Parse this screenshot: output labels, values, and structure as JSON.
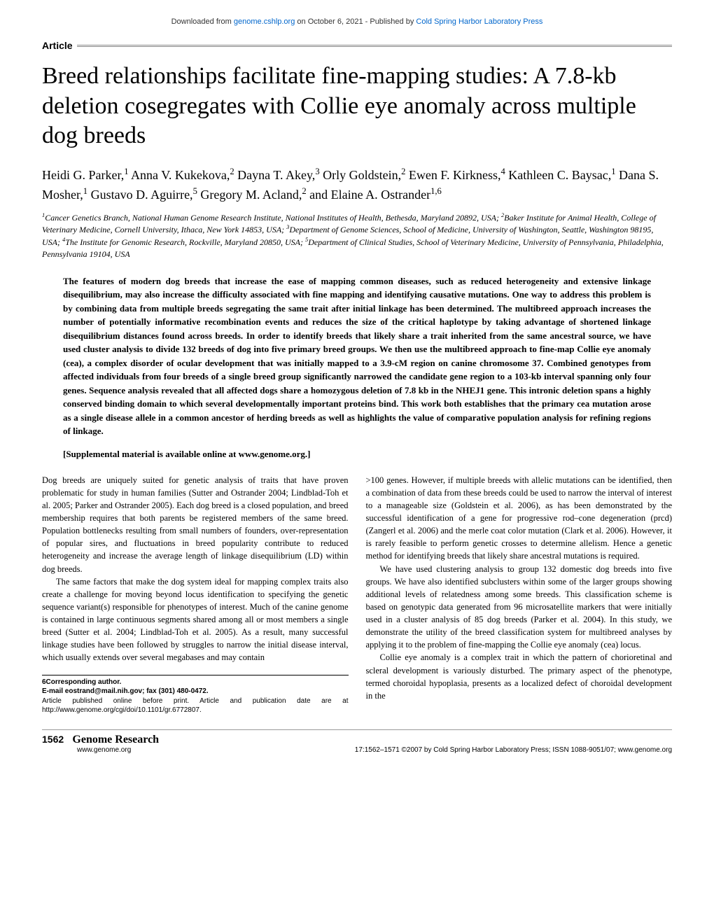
{
  "download_bar": {
    "prefix": "Downloaded from ",
    "link1": "genome.cshlp.org",
    "middle": " on October 6, 2021 - Published by ",
    "link2": "Cold Spring Harbor Laboratory Press"
  },
  "article_label": "Article",
  "title": "Breed relationships facilitate fine-mapping studies: A 7.8-kb deletion cosegregates with Collie eye anomaly across multiple dog breeds",
  "authors_html": "Heidi G. Parker,<sup>1</sup> Anna V. Kukekova,<sup>2</sup> Dayna T. Akey,<sup>3</sup> Orly Goldstein,<sup>2</sup> Ewen F. Kirkness,<sup>4</sup> Kathleen C. Baysac,<sup>1</sup> Dana S. Mosher,<sup>1</sup> Gustavo D. Aguirre,<sup>5</sup> Gregory M. Acland,<sup>2</sup> and Elaine A. Ostrander<sup>1,6</sup>",
  "affiliations_html": "<sup>1</sup>Cancer Genetics Branch, National Human Genome Research Institute, National Institutes of Health, Bethesda, Maryland 20892, USA; <sup>2</sup>Baker Institute for Animal Health, College of Veterinary Medicine, Cornell University, Ithaca, New York 14853, USA; <sup>3</sup>Department of Genome Sciences, School of Medicine, University of Washington, Seattle, Washington 98195, USA; <sup>4</sup>The Institute for Genomic Research, Rockville, Maryland 20850, USA; <sup>5</sup>Department of Clinical Studies, School of Veterinary Medicine, University of Pennsylvania, Philadelphia, Pennsylvania 19104, USA",
  "abstract": "The features of modern dog breeds that increase the ease of mapping common diseases, such as reduced heterogeneity and extensive linkage disequilibrium, may also increase the difficulty associated with fine mapping and identifying causative mutations. One way to address this problem is by combining data from multiple breeds segregating the same trait after initial linkage has been determined. The multibreed approach increases the number of potentially informative recombination events and reduces the size of the critical haplotype by taking advantage of shortened linkage disequilibrium distances found across breeds. In order to identify breeds that likely share a trait inherited from the same ancestral source, we have used cluster analysis to divide 132 breeds of dog into five primary breed groups. We then use the multibreed approach to fine-map Collie eye anomaly (cea), a complex disorder of ocular development that was initially mapped to a 3.9-cM region on canine chromosome 37. Combined genotypes from affected individuals from four breeds of a single breed group significantly narrowed the candidate gene region to a 103-kb interval spanning only four genes. Sequence analysis revealed that all affected dogs share a homozygous deletion of 7.8 kb in the NHEJ1 gene. This intronic deletion spans a highly conserved binding domain to which several developmentally important proteins bind. This work both establishes that the primary cea mutation arose as a single disease allele in a common ancestor of herding breeds as well as highlights the value of comparative population analysis for refining regions of linkage.",
  "supplemental": "[Supplemental material is available online at www.genome.org.]",
  "body": {
    "col1_p1": "Dog breeds are uniquely suited for genetic analysis of traits that have proven problematic for study in human families (Sutter and Ostrander 2004; Lindblad-Toh et al. 2005; Parker and Ostrander 2005). Each dog breed is a closed population, and breed membership requires that both parents be registered members of the same breed. Population bottlenecks resulting from small numbers of founders, over-representation of popular sires, and fluctuations in breed popularity contribute to reduced heterogeneity and increase the average length of linkage disequilibrium (LD) within dog breeds.",
    "col1_p2": "The same factors that make the dog system ideal for mapping complex traits also create a challenge for moving beyond locus identification to specifying the genetic sequence variant(s) responsible for phenotypes of interest. Much of the canine genome is contained in large continuous segments shared among all or most members a single breed (Sutter et al. 2004; Lindblad-Toh et al. 2005). As a result, many successful linkage studies have been followed by struggles to narrow the initial disease interval, which usually extends over several megabases and may contain",
    "col2_p1": ">100 genes. However, if multiple breeds with allelic mutations can be identified, then a combination of data from these breeds could be used to narrow the interval of interest to a manageable size (Goldstein et al. 2006), as has been demonstrated by the successful identification of a gene for progressive rod–cone degeneration (prcd) (Zangerl et al. 2006) and the merle coat color mutation (Clark et al. 2006). However, it is rarely feasible to perform genetic crosses to determine allelism. Hence a genetic method for identifying breeds that likely share ancestral mutations is required.",
    "col2_p2": "We have used clustering analysis to group 132 domestic dog breeds into five groups. We have also identified subclusters within some of the larger groups showing additional levels of relatedness among some breeds. This classification scheme is based on genotypic data generated from 96 microsatellite markers that were initially used in a cluster analysis of 85 dog breeds (Parker et al. 2004). In this study, we demonstrate the utility of the breed classification system for multibreed analyses by applying it to the problem of fine-mapping the Collie eye anomaly (cea) locus.",
    "col2_p3": "Collie eye anomaly is a complex trait in which the pattern of chorioretinal and scleral development is variously disturbed. The primary aspect of the phenotype, termed choroidal hypoplasia, presents as a localized defect of choroidal development in the"
  },
  "footnotes": {
    "corresponding": "6Corresponding author.",
    "email": "E-mail eostrand@mail.nih.gov; fax (301) 480-0472.",
    "pub_info": "Article published online before print. Article and publication date are at http://www.genome.org/cgi/doi/10.1101/gr.6772807."
  },
  "footer": {
    "page_num": "1562",
    "journal": "Genome Research",
    "url": "www.genome.org",
    "copyright": "17:1562–1571 ©2007 by Cold Spring Harbor Laboratory Press; ISSN 1088-9051/07; www.genome.org"
  }
}
